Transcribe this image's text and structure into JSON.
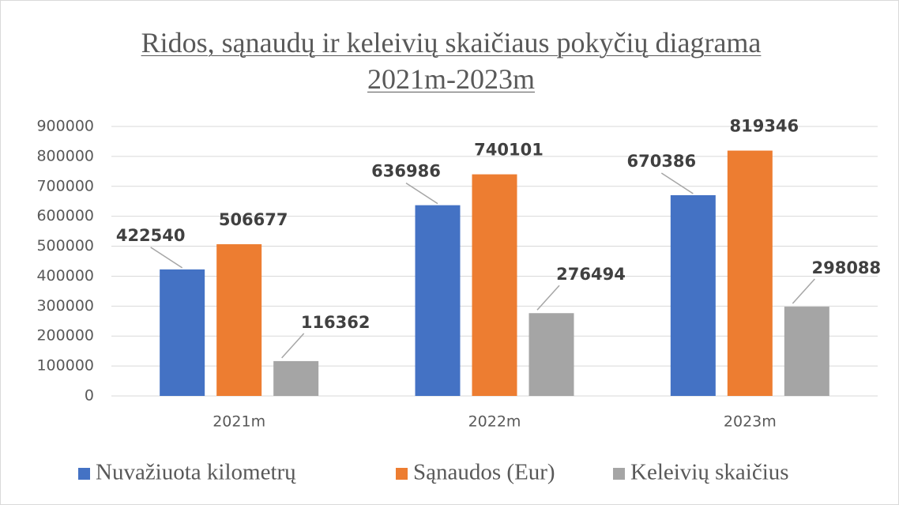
{
  "chart_data": {
    "type": "bar",
    "title": "Ridos, sąnaudų ir keleivių skaičiaus pokyčių diagrama 2021m-2023m",
    "categories": [
      "2021m",
      "2022m",
      "2023m"
    ],
    "series": [
      {
        "name": "Nuvažiuota kilometrų",
        "color": "#4472c4",
        "values": [
          422540,
          636986,
          670386
        ]
      },
      {
        "name": "Sąnaudos (Eur)",
        "color": "#ed7d31",
        "values": [
          506677,
          740101,
          819346
        ]
      },
      {
        "name": "Keleivių skaičius",
        "color": "#a5a5a5",
        "values": [
          116362,
          276494,
          298088
        ]
      }
    ],
    "ylim": [
      0,
      900000
    ],
    "yticks": [
      0,
      100000,
      200000,
      300000,
      400000,
      500000,
      600000,
      700000,
      800000,
      900000
    ],
    "grid": true,
    "legend": "bottom"
  }
}
